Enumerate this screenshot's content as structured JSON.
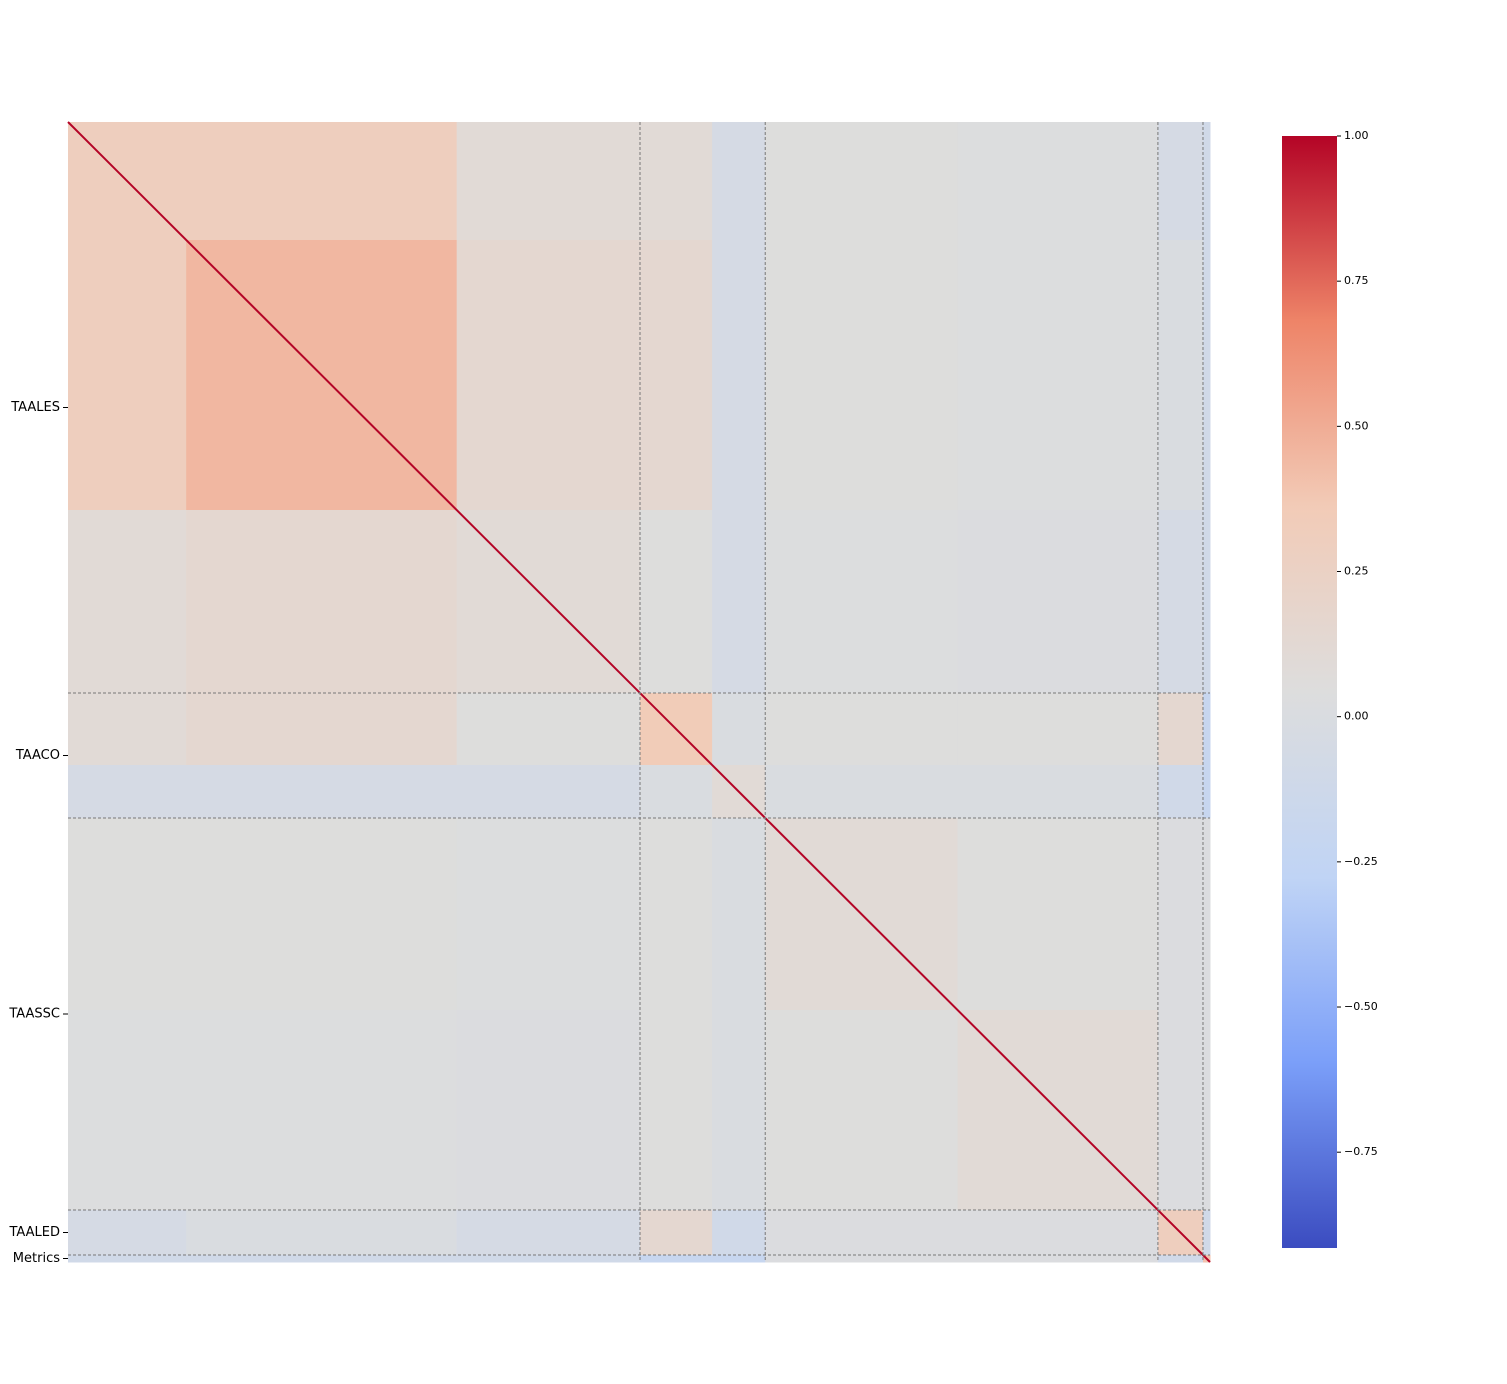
{
  "chart_data": {
    "type": "heatmap",
    "groups": [
      {
        "label": "TAALES",
        "sizes": [
          118,
          270,
          183
        ]
      },
      {
        "label": "TAACO",
        "sizes": [
          72,
          53
        ]
      },
      {
        "label": "TAASSC",
        "sizes": [
          192,
          200
        ]
      },
      {
        "label": "TAALED",
        "sizes": [
          45
        ]
      },
      {
        "label": "Metrics",
        "sizes": [
          7
        ]
      }
    ],
    "values": [
      [
        0.3,
        0.3,
        0.1,
        0.1,
        -0.05,
        0.05,
        0.03,
        -0.05,
        -0.1
      ],
      [
        0.3,
        0.45,
        0.15,
        0.15,
        -0.05,
        0.05,
        0.03,
        0.0,
        -0.1
      ],
      [
        0.1,
        0.15,
        0.1,
        0.05,
        -0.05,
        0.03,
        0.02,
        -0.05,
        -0.1
      ],
      [
        0.1,
        0.15,
        0.05,
        0.35,
        0.0,
        0.05,
        0.05,
        0.15,
        -0.2
      ],
      [
        -0.05,
        -0.05,
        -0.05,
        0.0,
        0.1,
        0.0,
        0.0,
        -0.1,
        -0.2
      ],
      [
        0.05,
        0.05,
        0.03,
        0.05,
        0.0,
        0.1,
        0.05,
        0.02,
        0.02
      ],
      [
        0.03,
        0.03,
        0.02,
        0.05,
        0.0,
        0.05,
        0.1,
        0.02,
        0.02
      ],
      [
        -0.05,
        0.0,
        -0.05,
        0.15,
        -0.1,
        0.02,
        0.02,
        0.3,
        -0.1
      ],
      [
        -0.1,
        -0.1,
        -0.1,
        -0.2,
        -0.2,
        0.02,
        0.02,
        -0.1,
        0.4
      ]
    ],
    "diagonal": 1,
    "colorscale": [
      "#3b4cc0",
      "#7b9ff9",
      "#c0d4f5",
      "#dddddd",
      "#f2cbb7",
      "#ee8468",
      "#b40426"
    ],
    "clim": [
      -0.915,
      1
    ],
    "cticks": [
      {
        "value": 1,
        "label": "1.00"
      },
      {
        "value": 0.75,
        "label": "0.75"
      },
      {
        "value": 0.5,
        "label": "0.50"
      },
      {
        "value": 0.25,
        "label": "0.25"
      },
      {
        "value": 0,
        "label": "0.00"
      },
      {
        "value": -0.25,
        "label": "−0.25"
      },
      {
        "value": -0.5,
        "label": "−0.50"
      },
      {
        "value": -0.75,
        "label": "−0.75"
      }
    ]
  }
}
